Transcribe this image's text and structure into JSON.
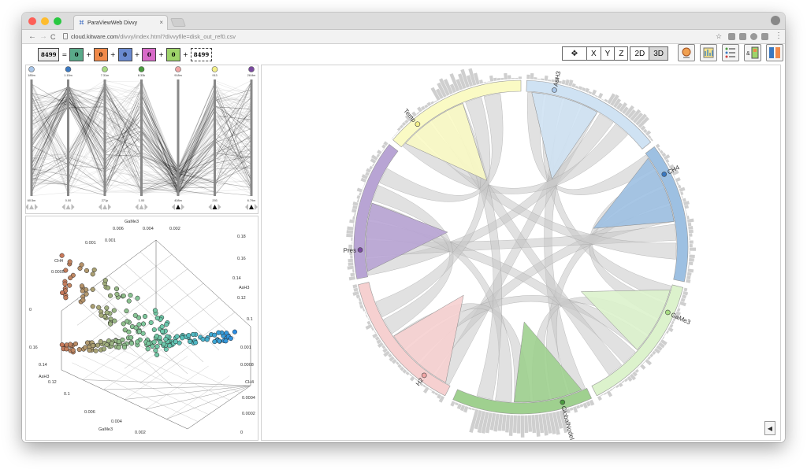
{
  "browser": {
    "tab_title": "ParaViewWeb Divvy",
    "tab_close": "×",
    "url_host": "cloud.kitware.com",
    "url_path": "/divvy/index.html?divvyfile=disk_out_ref0.csv",
    "back": "←",
    "forward": "→",
    "reload": "C"
  },
  "formula": {
    "total": "8499",
    "equals": "=",
    "plus": "+",
    "terms": [
      {
        "value": "0",
        "color": "#5aaa8a"
      },
      {
        "value": "0",
        "color": "#f08a4a"
      },
      {
        "value": "0",
        "color": "#6a8ad0"
      },
      {
        "value": "0",
        "color": "#d86ac8"
      },
      {
        "value": "0",
        "color": "#9ed46a"
      }
    ],
    "result": "8499"
  },
  "toolbar": {
    "reset_icon": "✥",
    "x": "X",
    "y": "Y",
    "z": "Z",
    "d2": "2D",
    "d3": "3D"
  },
  "parallel_coords": {
    "axes": [
      {
        "color": "#a9c6e8",
        "top": "185m",
        "bottom": "60.5m"
      },
      {
        "color": "#3a78c0",
        "top": "1.15m",
        "bottom": "0.00"
      },
      {
        "color": "#a8dc82",
        "top": "7.31m",
        "bottom": "271p"
      },
      {
        "color": "#4a9a3e",
        "top": "8.33k",
        "bottom": "1.00"
      },
      {
        "color": "#f2a6a6",
        "top": "918m",
        "bottom": "408m"
      },
      {
        "color": "#f4f08a",
        "top": "913",
        "bottom": "293"
      },
      {
        "color": "#7a4aa0",
        "top": "28.8m",
        "bottom": "6.79m"
      }
    ]
  },
  "scatter": {
    "labels": [
      {
        "text": "GaMe3"
      },
      {
        "text": "0.006"
      },
      {
        "text": "0.004"
      },
      {
        "text": "0.002"
      },
      {
        "text": "0.18"
      },
      {
        "text": "0.16"
      },
      {
        "text": "0.14"
      },
      {
        "text": "AsH3"
      },
      {
        "text": "0.12"
      },
      {
        "text": "0.1"
      },
      {
        "text": "0.001"
      },
      {
        "text": "CH4"
      },
      {
        "text": "0.0005"
      },
      {
        "text": "0"
      },
      {
        "text": "0.001"
      },
      {
        "text": "0.0008"
      },
      {
        "text": "CH4"
      },
      {
        "text": "0.0004"
      },
      {
        "text": "0.0002"
      },
      {
        "text": "0"
      },
      {
        "text": "0.16"
      },
      {
        "text": "0.14"
      },
      {
        "text": "AsH3"
      },
      {
        "text": "0.12"
      },
      {
        "text": "0.1"
      },
      {
        "text": "0.006"
      },
      {
        "text": "0.004"
      },
      {
        "text": "GaMe3"
      },
      {
        "text": "0.002"
      },
      {
        "text": "0.001"
      }
    ]
  },
  "chord": {
    "groups": [
      {
        "name": "AsH3",
        "color": "#cfe2f3",
        "dot": "#a9c6e8"
      },
      {
        "name": "CH4",
        "color": "#9dc0e2",
        "dot": "#3a78c0"
      },
      {
        "name": "GaMe3",
        "color": "#dcf2cc",
        "dot": "#a8dc82"
      },
      {
        "name": "GlobalNodeId",
        "color": "#9fd08f",
        "dot": "#4a9a3e"
      },
      {
        "name": "H2",
        "color": "#f6d0d0",
        "dot": "#f2a6a6"
      },
      {
        "name": "Pres",
        "color": "#b8a4d4",
        "dot": "#7a4aa0"
      },
      {
        "name": "Temp",
        "color": "#fafac4",
        "dot": "#f4f08a"
      }
    ]
  },
  "collapse_icon": "◀"
}
